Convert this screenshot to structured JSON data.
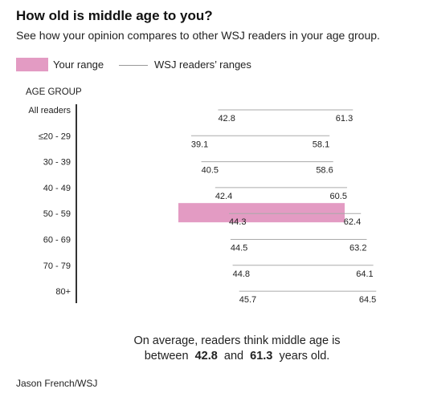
{
  "header": {
    "title": "How old is middle age to you?",
    "subtitle": "See how your opinion compares to other WSJ readers in your age group."
  },
  "legend": {
    "your_range": "Your range",
    "readers_ranges": "WSJ readers’ ranges"
  },
  "colors": {
    "highlight": "#e39bc3",
    "range_line": "#aaaaaa",
    "axis": "#333333",
    "text": "#222222"
  },
  "chart_data": {
    "type": "range",
    "ylabel": "AGE GROUP",
    "categories": [
      "All readers",
      "≤20 - 29",
      "30 - 39",
      "40 - 49",
      "50 - 59",
      "60 - 69",
      "70 - 79",
      "80+"
    ],
    "series": [
      {
        "name": "WSJ readers’ ranges",
        "low": [
          42.8,
          39.1,
          40.5,
          42.4,
          44.3,
          44.5,
          44.8,
          45.7
        ],
        "high": [
          61.3,
          58.1,
          58.6,
          60.5,
          62.4,
          63.2,
          64.1,
          64.5
        ]
      }
    ],
    "highlight_category": "50 - 59",
    "xlim": [
      25,
      68
    ]
  },
  "summary": {
    "line1": "On average, readers think middle age is",
    "prefix": "between",
    "low": "42.8",
    "mid": "and",
    "high": "61.3",
    "suffix": "years old."
  },
  "credit": "Jason French/WSJ"
}
